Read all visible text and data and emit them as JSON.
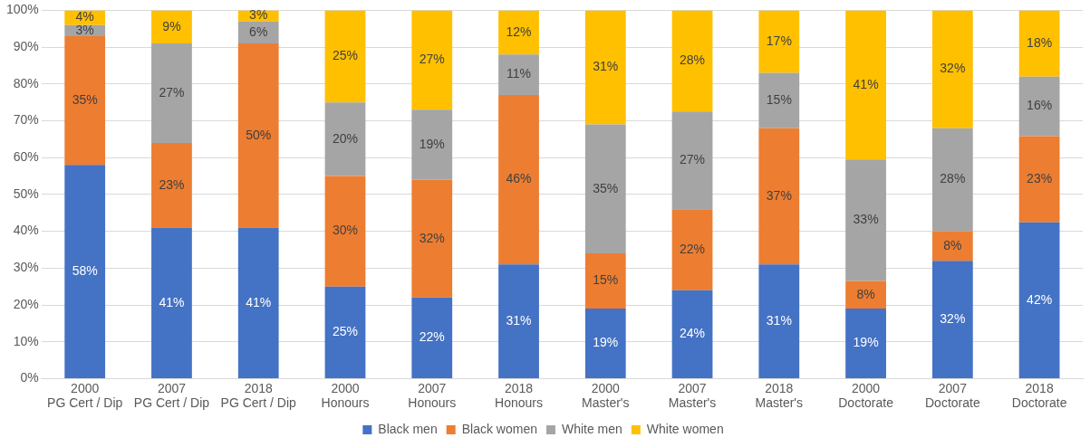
{
  "chart_data": {
    "type": "bar",
    "stacked": true,
    "categories": [
      "2000 PG Cert / Dip",
      "2007 PG Cert / Dip",
      "2018 PG Cert / Dip",
      "2000 Honours",
      "2007 Honours",
      "2018 Honours",
      "2000 Master's",
      "2007 Master's",
      "2018 Master's",
      "2000 Doctorate",
      "2007 Doctorate",
      "2018 Doctorate"
    ],
    "series": [
      {
        "name": "Black men",
        "color": "#4472c4",
        "values": [
          58,
          41,
          41,
          25,
          22,
          31,
          19,
          24,
          31,
          19,
          32,
          42.4
        ],
        "value_labels": [
          "58%",
          "41%",
          "41%",
          "25%",
          "22%",
          "31%",
          "19%",
          "24%",
          "31%",
          "19%",
          "32%",
          "42%"
        ]
      },
      {
        "name": "Black women",
        "color": "#ed7d31",
        "values": [
          35,
          23,
          50,
          30,
          32,
          46,
          15,
          22,
          37,
          7.5,
          8,
          23.4
        ],
        "value_labels": [
          "35%",
          "23%",
          "50%",
          "30%",
          "32%",
          "46%",
          "15%",
          "22%",
          "37%",
          "8%",
          "8%",
          "23%"
        ]
      },
      {
        "name": "White men",
        "color": "#a5a5a5",
        "values": [
          3,
          27,
          6,
          20,
          19,
          11,
          35,
          26.5,
          15,
          33,
          28,
          16.2
        ],
        "value_labels": [
          "3%",
          "27%",
          "6%",
          "20%",
          "19%",
          "11%",
          "35%",
          "27%",
          "15%",
          "33%",
          "28%",
          "16%"
        ]
      },
      {
        "name": "White women",
        "color": "#ffc000",
        "values": [
          4,
          9,
          3,
          25,
          27,
          12,
          31,
          27.5,
          17,
          40.5,
          32,
          18
        ],
        "value_labels": [
          "4%",
          "9%",
          "3%",
          "25%",
          "27%",
          "12%",
          "31%",
          "28%",
          "17%",
          "41%",
          "32%",
          "18%"
        ]
      }
    ],
    "ylim": [
      0,
      100
    ],
    "yticks": [
      {
        "value": 0,
        "label": "0%"
      },
      {
        "value": 10,
        "label": "10%"
      },
      {
        "value": 20,
        "label": "20%"
      },
      {
        "value": 30,
        "label": "30%"
      },
      {
        "value": 40,
        "label": "40%"
      },
      {
        "value": 50,
        "label": "50%"
      },
      {
        "value": 60,
        "label": "60%"
      },
      {
        "value": 70,
        "label": "70%"
      },
      {
        "value": 80,
        "label": "80%"
      },
      {
        "value": 90,
        "label": "90%"
      },
      {
        "value": 100,
        "label": "100%"
      }
    ],
    "grid": "y",
    "legend": "bottom"
  }
}
